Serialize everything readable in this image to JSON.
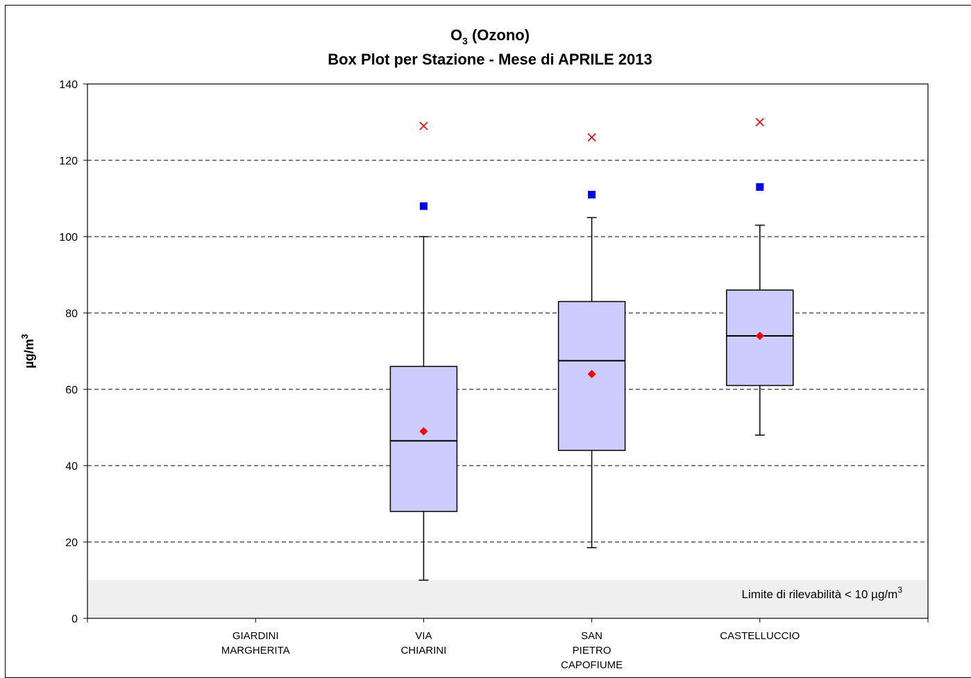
{
  "chart_data": {
    "type": "box",
    "title_main": "O",
    "title_sub": "3",
    "title_rest": " (Ozono)",
    "subtitle": "Box Plot per Stazione - Mese di APRILE 2013",
    "ylabel_main": "µg/m",
    "ylabel_sup": "3",
    "ylim": [
      0,
      140
    ],
    "yticks": [
      0,
      20,
      40,
      60,
      80,
      100,
      120,
      140
    ],
    "grid": "horizontal-dashed",
    "categories": [
      [
        "GIARDINI",
        "MARGHERITA"
      ],
      [
        "VIA",
        "CHIARINI"
      ],
      [
        "SAN",
        "PIETRO",
        "CAPOFIUME"
      ],
      [
        "CASTELLUCCIO"
      ]
    ],
    "boxes": [
      null,
      {
        "min": 10,
        "q1": 28,
        "median": 46.5,
        "q3": 66,
        "max": 100,
        "mean": 49,
        "p95": 108,
        "maximum": 129
      },
      {
        "min": 18.5,
        "q1": 44,
        "median": 67.5,
        "q3": 83,
        "max": 105,
        "mean": 64,
        "p95": 111,
        "maximum": 126
      },
      {
        "min": 48,
        "q1": 61,
        "median": 74,
        "q3": 86,
        "max": 103,
        "mean": 74,
        "p95": 113,
        "maximum": 130
      }
    ],
    "detection_limit": 10,
    "detection_note_main": "Limite di rilevabilità < 10 µg/m",
    "detection_note_sup": "3",
    "colors": {
      "box_fill": "#ccccff",
      "mean_marker": "#ff0000",
      "p95_marker": "#0000ff",
      "max_marker": "#ff0000",
      "band": "#efefef",
      "grid": "#000000"
    }
  }
}
